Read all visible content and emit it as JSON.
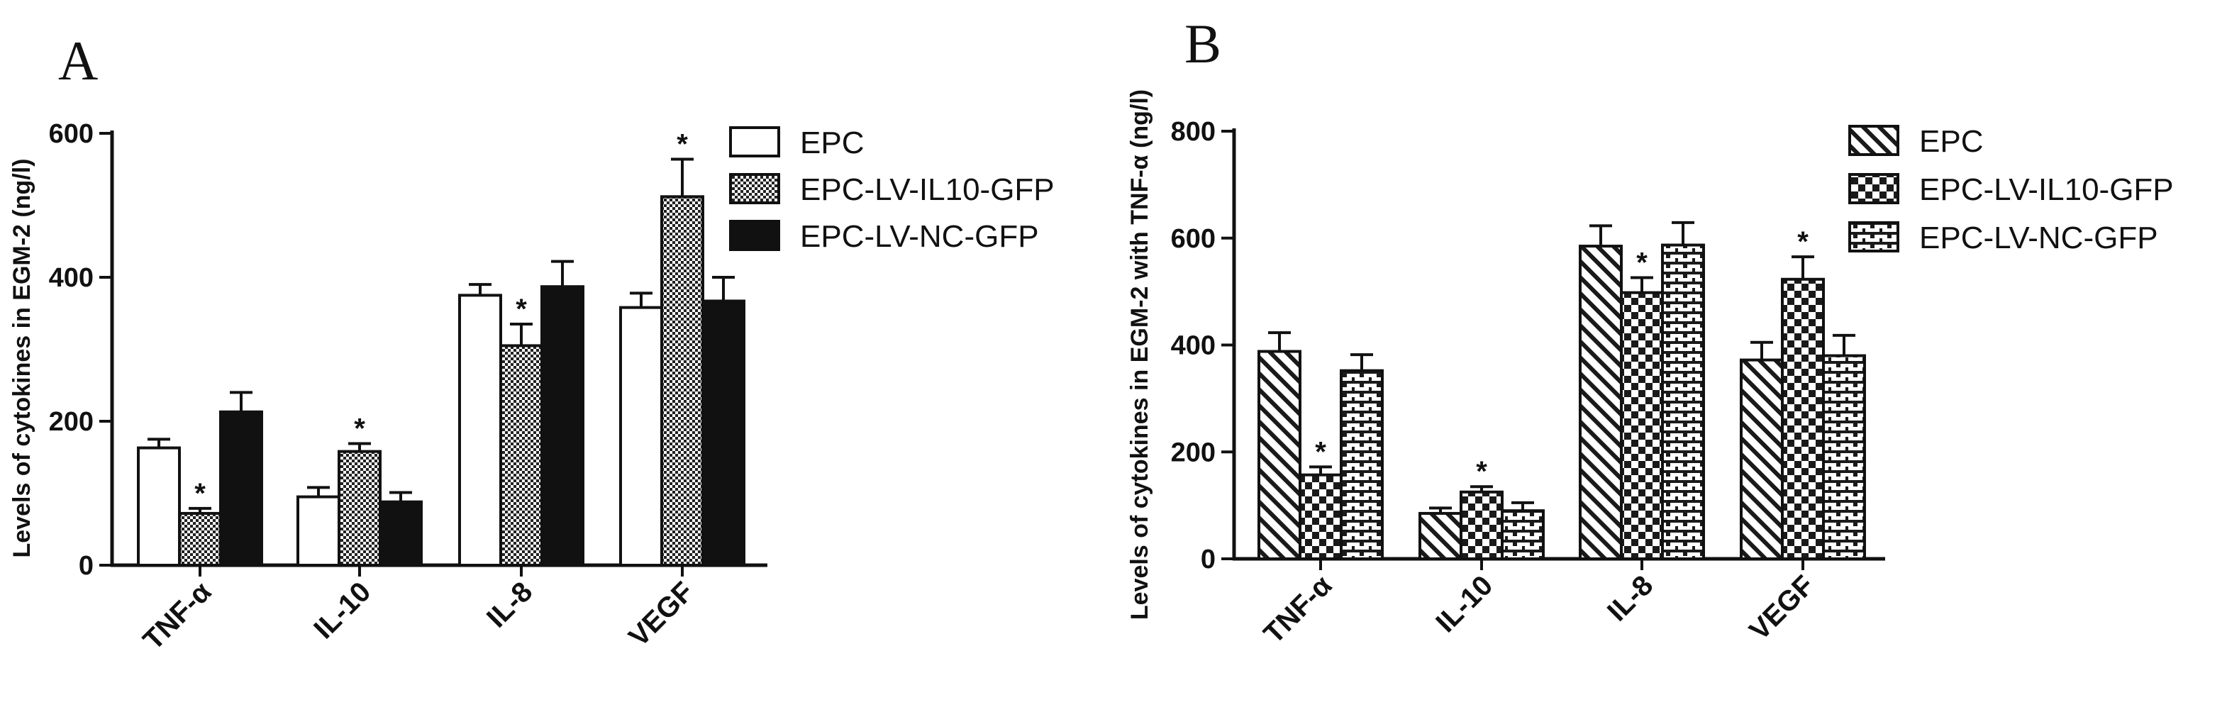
{
  "chart_data": [
    {
      "panel": "A",
      "type": "bar",
      "ylabel": "Levels of cytokines in EGM-2 (ng/l)",
      "xlabel": "",
      "ylim": [
        0,
        600
      ],
      "yticks": [
        0,
        200,
        400,
        600
      ],
      "categories": [
        "TNF-α",
        "IL-10",
        "IL-8",
        "VEGF"
      ],
      "series": [
        {
          "name": "EPC",
          "pattern": "white",
          "values": [
            163,
            95,
            375,
            358
          ],
          "errors": [
            12,
            13,
            15,
            20
          ],
          "significant": [
            false,
            false,
            false,
            false
          ]
        },
        {
          "name": "EPC-LV-IL10-GFP",
          "pattern": "dots",
          "values": [
            72,
            158,
            305,
            512
          ],
          "errors": [
            7,
            11,
            30,
            52
          ],
          "significant": [
            true,
            true,
            true,
            true
          ]
        },
        {
          "name": "EPC-LV-NC-GFP",
          "pattern": "black",
          "values": [
            213,
            88,
            387,
            367
          ],
          "errors": [
            27,
            13,
            35,
            33
          ],
          "significant": [
            false,
            false,
            false,
            false
          ]
        }
      ],
      "significance_label": "*",
      "legend": "top-right",
      "grid": false
    },
    {
      "panel": "B",
      "type": "bar",
      "ylabel": "Levels of cytokines in EGM-2 with TNF-α (ng/l)",
      "xlabel": "",
      "ylim": [
        0,
        800
      ],
      "yticks": [
        0,
        200,
        400,
        600,
        800
      ],
      "categories": [
        "TNF-α",
        "IL-10",
        "IL-8",
        "VEGF"
      ],
      "series": [
        {
          "name": "EPC",
          "pattern": "diagonal",
          "values": [
            388,
            85,
            585,
            372
          ],
          "errors": [
            35,
            10,
            38,
            33
          ],
          "significant": [
            false,
            false,
            false,
            false
          ]
        },
        {
          "name": "EPC-LV-IL10-GFP",
          "pattern": "checker",
          "values": [
            157,
            125,
            498,
            523
          ],
          "errors": [
            15,
            10,
            28,
            42
          ],
          "significant": [
            true,
            true,
            true,
            true
          ]
        },
        {
          "name": "EPC-LV-NC-GFP",
          "pattern": "brick",
          "values": [
            352,
            90,
            587,
            380
          ],
          "errors": [
            30,
            15,
            42,
            38
          ],
          "significant": [
            false,
            false,
            false,
            false
          ]
        }
      ],
      "significance_label": "*",
      "legend": "top-right",
      "grid": false
    }
  ]
}
